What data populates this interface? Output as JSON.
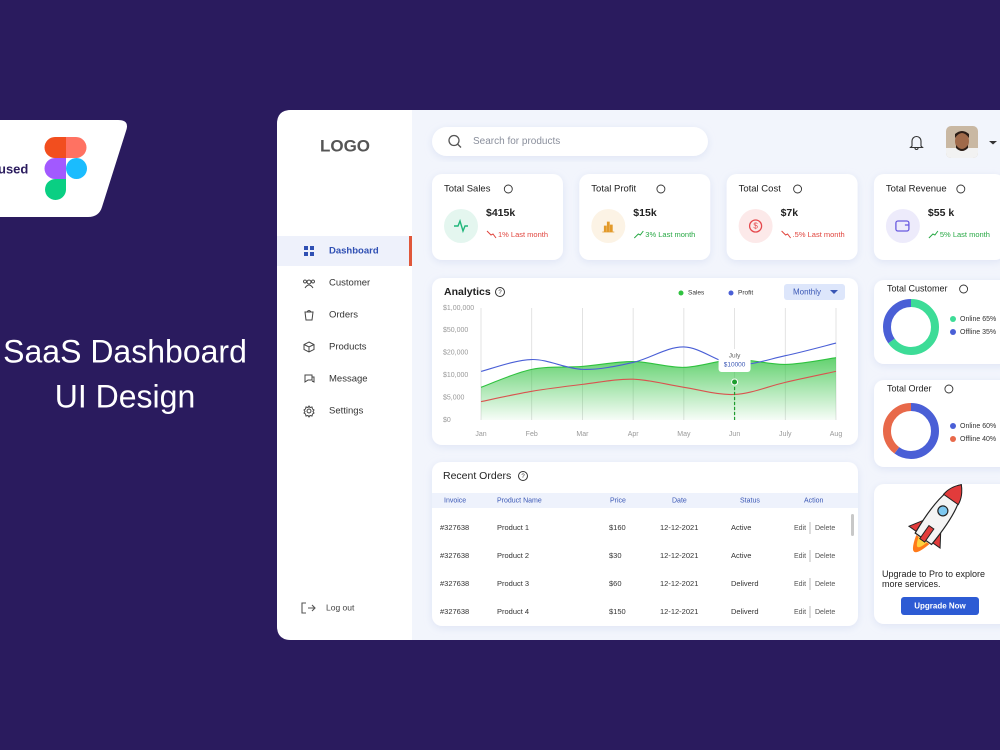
{
  "promo": {
    "badge": "used",
    "headline": [
      "SaaS Dashboard",
      "UI Design"
    ]
  },
  "sidebar": {
    "logo": "LOGO",
    "nav": [
      "Dashboard",
      "Customer",
      "Orders",
      "Products",
      "Message",
      "Settings"
    ],
    "active": 0,
    "logout": "Log out"
  },
  "search": {
    "placeholder": "Search for products"
  },
  "stats": [
    {
      "title": "Total Sales",
      "value": "$415k",
      "change": "1% Last month",
      "trend": "down",
      "color": "#1fb67a"
    },
    {
      "title": "Total Profit",
      "value": "$15k",
      "change": "3% Last month",
      "trend": "up",
      "color": "#e39a2b"
    },
    {
      "title": "Total Cost",
      "value": "$7k",
      "change": ".5% Last month",
      "trend": "down",
      "color": "#e5484d"
    },
    {
      "title": "Total Revenue",
      "value": "$55 k",
      "change": "5% Last month",
      "trend": "up",
      "color": "#6a5ae0"
    }
  ],
  "chart_data": [
    {
      "type": "line",
      "title": "Analytics",
      "period": "Monthly",
      "categories": [
        "Jan",
        "Feb",
        "Mar",
        "Apr",
        "May",
        "Jun",
        "July",
        "Aug"
      ],
      "series": [
        {
          "name": "Sales",
          "color": "#2fc23f",
          "fill": true,
          "values": [
            7300,
            12600,
            13900,
            16100,
            13500,
            17000,
            14800,
            17800
          ]
        },
        {
          "name": "Profit",
          "color": "#4a5fd6",
          "values": [
            11700,
            17000,
            12600,
            15700,
            27800,
            14800,
            18700,
            33000
          ]
        },
        {
          "color": "#d9534f",
          "values": [
            4100,
            6400,
            7950,
            9100,
            7300,
            5700,
            8400,
            11700
          ]
        }
      ],
      "ylim": [
        0,
        100000
      ],
      "yticks": [
        {
          "value": 0,
          "label": "$0"
        },
        {
          "value": 5000,
          "label": "$5,000"
        },
        {
          "value": 10000,
          "label": "$10,000"
        },
        {
          "value": 20000,
          "label": "$20,000"
        },
        {
          "value": 50000,
          "label": "$50,000"
        },
        {
          "value": 100000,
          "label": "$1,00,000"
        }
      ],
      "grid": "x",
      "annotation": {
        "label": "July",
        "value": "$10000"
      }
    },
    {
      "type": "donut",
      "title": "Total Customer",
      "categories": [
        "Online",
        "Offline"
      ],
      "values": [
        65,
        35
      ],
      "value_labels": [
        "65%",
        "35%"
      ],
      "colors": [
        "#3ddc97",
        "#4a5fd6"
      ]
    },
    {
      "type": "donut",
      "title": "Total Order",
      "categories": [
        "Online",
        "Offline"
      ],
      "values": [
        60,
        40
      ],
      "value_labels": [
        "60%",
        "40%"
      ],
      "colors": [
        "#4a5fd6",
        "#e8694a"
      ]
    }
  ],
  "recent_orders": {
    "title": "Recent Orders",
    "columns": [
      "Invoice",
      "Product Name",
      "Price",
      "Date",
      "Status",
      "Action"
    ],
    "rows": [
      [
        "#327638",
        "Product 1",
        "$160",
        "12-12-2021",
        "Active"
      ],
      [
        "#327638",
        "Product 2",
        "$30",
        "12-12-2021",
        "Active"
      ],
      [
        "#327638",
        "Product 3",
        "$60",
        "12-12-2021",
        "Deliverd"
      ],
      [
        "#327638",
        "Product 4",
        "$150",
        "12-12-2021",
        "Deliverd"
      ]
    ],
    "actions": [
      "Edit",
      "Delete"
    ]
  },
  "upgrade": {
    "text": "Upgrade to Pro to explore more services.",
    "button": "Upgrade Now"
  }
}
